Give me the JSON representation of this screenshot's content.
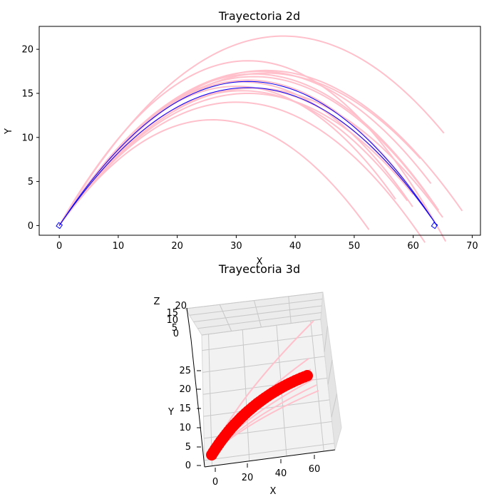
{
  "chart_data": [
    {
      "type": "line",
      "title": "Trayectoria 2d",
      "xlabel": "X",
      "ylabel": "Y",
      "xlim": [
        -3.4,
        71.4
      ],
      "ylim": [
        -1.1,
        22.6
      ],
      "xticks": [
        0,
        10,
        20,
        30,
        40,
        50,
        60,
        70
      ],
      "yticks": [
        0,
        5,
        10,
        15,
        20
      ],
      "grid": false,
      "main_trajectory": {
        "color": "#0000ff",
        "apex": [
          32,
          16.0
        ],
        "range": 64,
        "start_box": [
          0,
          0
        ],
        "end_box": [
          63.6,
          0
        ]
      },
      "sample_trajectories": {
        "color": "#ffc0cb",
        "paths": [
          {
            "apex": [
              38,
              21.5
            ],
            "end": [
              65.2,
              10.6
            ]
          },
          {
            "apex": [
              32,
              18.7
            ],
            "end": [
              65.5,
              3.4
            ]
          },
          {
            "apex": [
              35,
              17.6
            ],
            "end": [
              68.3,
              3.0
            ]
          },
          {
            "apex": [
              33,
              17.2
            ],
            "end": [
              64.3,
              3.5
            ]
          },
          {
            "apex": [
              34,
              17.5
            ],
            "end": [
              63.0,
              4.5
            ]
          },
          {
            "apex": [
              35,
              17.3
            ],
            "end": [
              61.2,
              4.8
            ]
          },
          {
            "apex": [
              33,
              16.9
            ],
            "end": [
              62.8,
              1.4
            ]
          },
          {
            "apex": [
              31,
              16.3
            ],
            "end": [
              59.9,
              1.5
            ]
          },
          {
            "apex": [
              32,
              15.6
            ],
            "end": [
              63.0,
              0.4
            ]
          },
          {
            "apex": [
              31,
              15.3
            ],
            "end": [
              59.0,
              2.0
            ]
          },
          {
            "apex": [
              32,
              15.0
            ],
            "end": [
              60.0,
              0.1
            ]
          },
          {
            "apex": [
              33,
              15.6
            ],
            "end": [
              65.0,
              0.1
            ]
          },
          {
            "apex": [
              30,
              15.8
            ],
            "end": [
              57.0,
              3.2
            ]
          },
          {
            "apex": [
              32,
              16.5
            ],
            "end": [
              62.5,
              2.6
            ]
          },
          {
            "apex": [
              30,
              14.0
            ],
            "end": [
              62.0,
              0.5
            ]
          },
          {
            "apex": [
              26,
              12.0
            ],
            "end": [
              52.5,
              0.7
            ]
          }
        ]
      }
    },
    {
      "type": "scatter",
      "title": "Trayectoria 3d",
      "xlabel": "X",
      "ylabel": "Y",
      "zlabel": "Z",
      "xticks": [
        0,
        20,
        40,
        60
      ],
      "yticks": [
        0,
        5,
        10,
        15,
        20,
        25
      ],
      "zticks": [
        0,
        5,
        10,
        15,
        20
      ],
      "marker_color": "#ff0000",
      "line_color": "#ffc0cb"
    }
  ]
}
